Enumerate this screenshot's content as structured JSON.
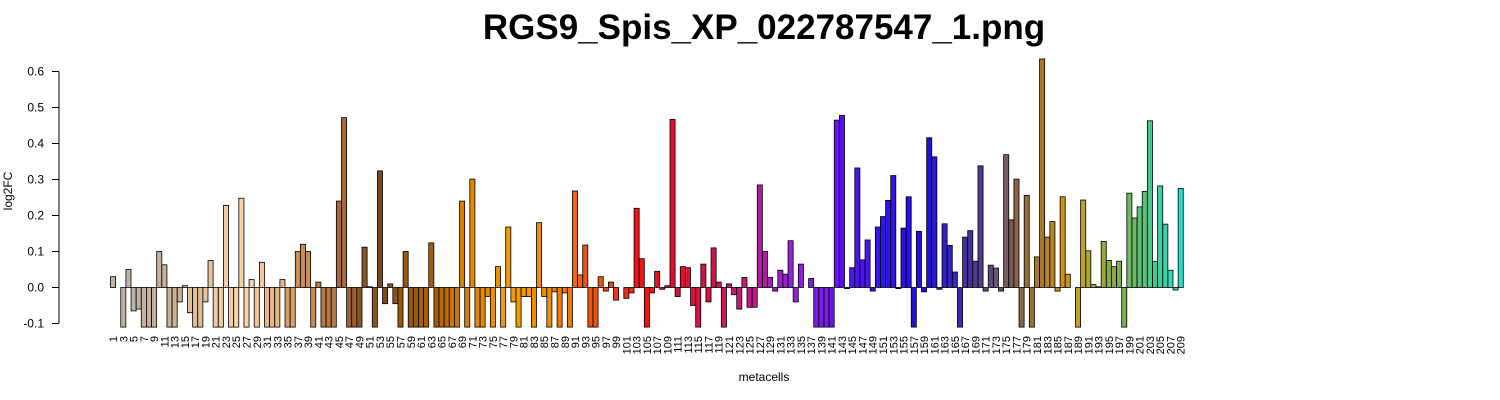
{
  "chart_data": {
    "type": "bar",
    "title": "RGS9_Spis_XP_022787547_1.png",
    "xlabel": "metacells",
    "ylabel": "log2FC",
    "ylim": [
      -0.1,
      0.6
    ],
    "yticks": [
      "-0.1",
      "0.0",
      "0.1",
      "0.2",
      "0.3",
      "0.4",
      "0.5",
      "0.6"
    ],
    "xtick_step": 2,
    "grid": false,
    "categories": [
      1,
      2,
      3,
      4,
      5,
      6,
      7,
      8,
      9,
      10,
      11,
      12,
      13,
      14,
      15,
      16,
      17,
      18,
      19,
      20,
      21,
      22,
      23,
      24,
      25,
      26,
      27,
      28,
      29,
      30,
      31,
      32,
      33,
      34,
      35,
      36,
      37,
      38,
      39,
      40,
      41,
      42,
      43,
      44,
      45,
      46,
      47,
      48,
      49,
      50,
      51,
      52,
      53,
      54,
      55,
      56,
      57,
      58,
      59,
      60,
      61,
      62,
      63,
      64,
      65,
      66,
      67,
      68,
      69,
      70,
      71,
      72,
      73,
      74,
      75,
      76,
      77,
      78,
      79,
      80,
      81,
      82,
      83,
      84,
      85,
      86,
      87,
      88,
      89,
      90,
      91,
      92,
      93,
      94,
      95,
      96,
      97,
      98,
      99,
      100,
      101,
      102,
      103,
      104,
      105,
      106,
      107,
      108,
      109,
      110,
      111,
      112,
      113,
      114,
      115,
      116,
      117,
      118,
      119,
      120,
      121,
      122,
      123,
      124,
      125,
      126,
      127,
      128,
      129,
      130,
      131,
      132,
      133,
      134,
      135,
      136,
      137,
      138,
      139,
      140,
      141,
      142,
      143,
      144,
      145,
      146,
      147,
      148,
      149,
      150,
      151,
      152,
      153,
      154,
      155,
      156,
      157,
      158,
      159,
      160,
      161,
      162,
      163,
      164,
      165,
      166,
      167,
      168,
      169,
      170,
      171,
      172,
      173,
      174,
      175,
      176,
      177,
      178,
      179,
      180,
      181,
      182,
      183,
      184,
      185,
      186,
      187,
      188,
      189,
      190,
      191,
      192,
      193,
      194,
      195,
      196,
      197,
      198,
      199,
      200,
      201,
      202,
      203,
      204,
      205,
      206,
      207,
      208,
      209
    ],
    "values": [
      0.03,
      0,
      -0.11,
      0.05,
      -0.065,
      -0.06,
      -0.11,
      -0.11,
      -0.11,
      0.1,
      0.063,
      -0.11,
      -0.11,
      -0.04,
      0.005,
      -0.07,
      -0.11,
      -0.11,
      -0.04,
      0.075,
      -0.11,
      -0.11,
      0.228,
      -0.11,
      -0.11,
      0.248,
      -0.11,
      0.022,
      -0.11,
      0.07,
      -0.11,
      -0.11,
      -0.11,
      0.022,
      -0.11,
      -0.11,
      0.1,
      0.12,
      0.1,
      -0.11,
      0.015,
      -0.11,
      -0.11,
      -0.11,
      0.24,
      0.472,
      -0.11,
      -0.11,
      -0.11,
      0.112,
      0.002,
      -0.11,
      0.324,
      -0.045,
      0.01,
      -0.045,
      -0.11,
      0.1,
      -0.11,
      -0.11,
      -0.11,
      -0.11,
      0.124,
      -0.11,
      -0.11,
      -0.11,
      -0.11,
      -0.11,
      0.24,
      -0.11,
      0.301,
      -0.11,
      -0.11,
      -0.025,
      -0.11,
      0.058,
      -0.11,
      0.168,
      -0.04,
      -0.11,
      -0.025,
      -0.025,
      -0.11,
      0.18,
      -0.025,
      -0.11,
      -0.012,
      -0.11,
      -0.015,
      -0.11,
      0.268,
      0.035,
      0.118,
      -0.11,
      -0.11,
      0.03,
      -0.01,
      0.015,
      -0.035,
      0,
      -0.03,
      -0.015,
      0.22,
      0.08,
      -0.11,
      -0.015,
      0.045,
      -0.005,
      0.005,
      0.467,
      -0.025,
      0.058,
      0.055,
      -0.05,
      -0.11,
      0.065,
      -0.04,
      0.11,
      0.015,
      -0.11,
      0.01,
      -0.02,
      -0.06,
      0.028,
      -0.055,
      -0.055,
      0.285,
      0.1,
      0.028,
      -0.01,
      0.048,
      0.037,
      0.13,
      -0.04,
      0.065,
      0,
      0.025,
      -0.11,
      -0.11,
      -0.11,
      -0.11,
      0.465,
      0.478,
      -0.003,
      0.055,
      0.332,
      0.077,
      0.132,
      -0.01,
      0.168,
      0.197,
      0.242,
      0.311,
      -0.003,
      0.165,
      0.252,
      -0.11,
      0.156,
      -0.012,
      0.416,
      0.363,
      -0.005,
      0.177,
      0.117,
      0.043,
      -0.11,
      0.14,
      0.158,
      0.073,
      0.338,
      -0.01,
      0.062,
      0.054,
      -0.01,
      0.369,
      0.188,
      0.301,
      -0.11,
      0.256,
      -0.11,
      0.085,
      0.635,
      0.14,
      0.183,
      -0.01,
      0.252,
      0.037,
      0,
      -0.11,
      0.243,
      0.102,
      0.008,
      0.002,
      0.128,
      0.075,
      0.058,
      0.073,
      -0.11,
      0.262,
      0.193,
      0.224,
      0.267,
      0.463,
      0.072,
      0.282,
      0.176,
      0.048,
      -0.007,
      0.275
    ],
    "colors": [
      "#bcb4a8",
      "#bcb4a8",
      "#bcb4a8",
      "#bcb4a8",
      "#bcb4a8",
      "#bcb4a8",
      "#c4b29e",
      "#c4b29e",
      "#c4b29e",
      "#c4b29e",
      "#cbb296",
      "#cbb296",
      "#cbb296",
      "#cbb296",
      "#e0bf98",
      "#e0bf98",
      "#e0bf98",
      "#e0bf98",
      "#e8c49e",
      "#e8c49e",
      "#f2cca6",
      "#f2cca6",
      "#f2cca6",
      "#f2cca6",
      "#f8d3a8",
      "#f8d3a8",
      "#f8d3a8",
      "#f8d3a8",
      "#f2c69a",
      "#f2c69a",
      "#e8b686",
      "#e8b686",
      "#e8b686",
      "#e8b686",
      "#d9a06c",
      "#d9a06c",
      "#c98c56",
      "#c98c56",
      "#c98c56",
      "#c98c56",
      "#b87a48",
      "#b87a48",
      "#b87a48",
      "#b87a48",
      "#a66a3a",
      "#a66a3a",
      "#98602e",
      "#98602e",
      "#8a5424",
      "#8a5424",
      "#8a5424",
      "#8a5424",
      "#7d4a1e",
      "#7d4a1e",
      "#8a5214",
      "#8a5214",
      "#97580e",
      "#97580e",
      "#97580e",
      "#97580e",
      "#a35e0a",
      "#a35e0a",
      "#a35e0a",
      "#a35e0a",
      "#b86a06",
      "#b86a06",
      "#c87604",
      "#c87604",
      "#d68002",
      "#d68002",
      "#e08a02",
      "#e08a02",
      "#e08a02",
      "#e08a02",
      "#ea9204",
      "#ea9204",
      "#f29a04",
      "#f29a04",
      "#f59a00",
      "#f59a00",
      "#f59a00",
      "#f59a00",
      "#f48a00",
      "#f48a00",
      "#f48a00",
      "#f48a00",
      "#f37a00",
      "#f37a00",
      "#f37a00",
      "#f37a00",
      "#ef6410",
      "#ef6410",
      "#ec5414",
      "#ec5414",
      "#ec5414",
      "#ec5414",
      "#ec4412",
      "#ec4412",
      "#ee3616",
      "#ee3616",
      "#ef2a14",
      "#ef2a14",
      "#f01414",
      "#f01414",
      "#f01414",
      "#f01414",
      "#e81024",
      "#e81024",
      "#e01030",
      "#e01030",
      "#e01030",
      "#e01030",
      "#da143c",
      "#da143c",
      "#d01446",
      "#d01446",
      "#d01446",
      "#d01446",
      "#cc1a5a",
      "#cc1a5a",
      "#c81870",
      "#c81870",
      "#c81870",
      "#c81870",
      "#c01a88",
      "#c01a88",
      "#b21ca0",
      "#b21ca0",
      "#a420b8",
      "#a420b8",
      "#9824c8",
      "#9824c8",
      "#9224d4",
      "#9224d4",
      "#8a22dc",
      "#8a22dc",
      "#7a1ee4",
      "#7a1ee4",
      "#7a1ee4",
      "#7a1ee4",
      "#6a14ec",
      "#6a14ec",
      "#5a0cf0",
      "#5a0cf0",
      "#4c14f4",
      "#4c14f4",
      "#4c14f4",
      "#4c14f4",
      "#3c14f0",
      "#3c14f0",
      "#3014ea",
      "#3014ea",
      "#3014ea",
      "#3014ea",
      "#2810e4",
      "#2810e4",
      "#2010dc",
      "#2010dc",
      "#2010dc",
      "#2010dc",
      "#2a1ad0",
      "#2a1ad0",
      "#3420c4",
      "#3420c4",
      "#3c28b2",
      "#3c28b2",
      "#46309c",
      "#46309c",
      "#503c8a",
      "#503c8a",
      "#5c4a7c",
      "#5c4a7c",
      "#6a5270",
      "#6a5270",
      "#7a5a5e",
      "#7a5a5e",
      "#886448",
      "#886448",
      "#966e38",
      "#966e38",
      "#a87a28",
      "#a87a28",
      "#b8861e",
      "#b8861e",
      "#c89418",
      "#c89418",
      "#c89418",
      "#c89418",
      "#c0a224",
      "#c0a224",
      "#aaa432",
      "#aaa432",
      "#98a63c",
      "#98a63c",
      "#88aa46",
      "#88aa46",
      "#7ab052",
      "#7ab052",
      "#6cb864",
      "#6cb864",
      "#5cc07a",
      "#5cc07a",
      "#48c890",
      "#48c890",
      "#3cd0a6",
      "#3cd0a6",
      "#34d6b8",
      "#34d6b8",
      "#28dcc8",
      "#28dcc8",
      "#1ce2d6",
      "#1ce2d6",
      "#10e8e4",
      "#10e8e4",
      "#06f0f0",
      "#06f4f4",
      "#00ffff"
    ]
  }
}
